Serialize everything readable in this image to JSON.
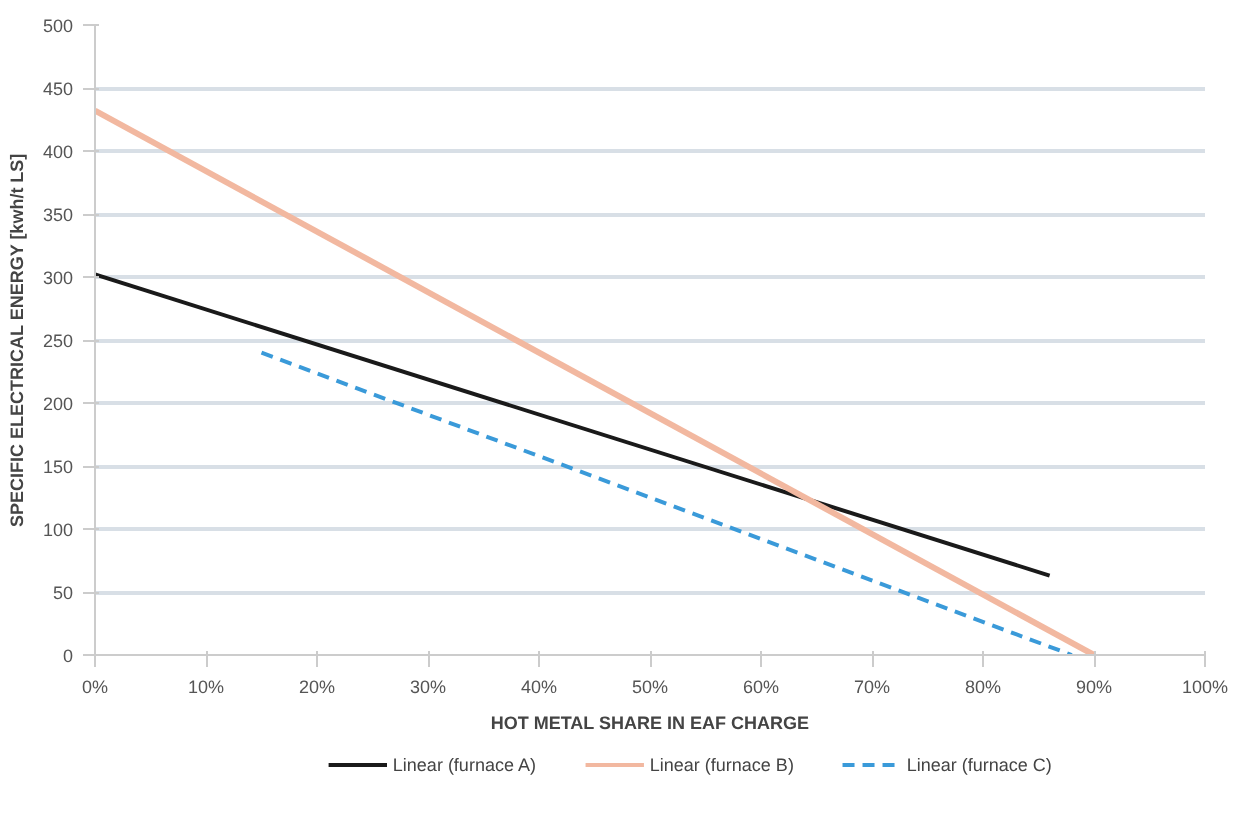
{
  "chart_data": {
    "type": "line",
    "xlabel": "HOT METAL SHARE IN EAF CHARGE",
    "ylabel": "SPECIFIC ELECTRICAL ENERGY [kwh/t LS]",
    "xlim": [
      0,
      100
    ],
    "ylim": [
      0,
      500
    ],
    "xticks": [
      {
        "value": 0,
        "label": "0%"
      },
      {
        "value": 10,
        "label": "10%"
      },
      {
        "value": 20,
        "label": "20%"
      },
      {
        "value": 30,
        "label": "30%"
      },
      {
        "value": 40,
        "label": "40%"
      },
      {
        "value": 50,
        "label": "50%"
      },
      {
        "value": 60,
        "label": "60%"
      },
      {
        "value": 70,
        "label": "70%"
      },
      {
        "value": 80,
        "label": "80%"
      },
      {
        "value": 90,
        "label": "90%"
      },
      {
        "value": 100,
        "label": "100%"
      }
    ],
    "yticks": [
      0,
      50,
      100,
      150,
      200,
      250,
      300,
      350,
      400,
      450,
      500
    ],
    "grid": "y",
    "legend": "bottom",
    "marker": "none",
    "series": [
      {
        "name": "Linear (furnace A)",
        "color": "#1a1a1a",
        "x": [
          0,
          86
        ],
        "values": [
          302,
          63
        ],
        "line_style": "solid"
      },
      {
        "name": "Linear (furnace B)",
        "color": "#f2b8a0",
        "x": [
          0,
          90
        ],
        "values": [
          432,
          0
        ],
        "line_style": "solid"
      },
      {
        "name": "Linear (furnace C)",
        "color": "#3a9ad9",
        "x": [
          15,
          88
        ],
        "values": [
          240,
          0
        ],
        "line_style": "dashed"
      }
    ]
  }
}
